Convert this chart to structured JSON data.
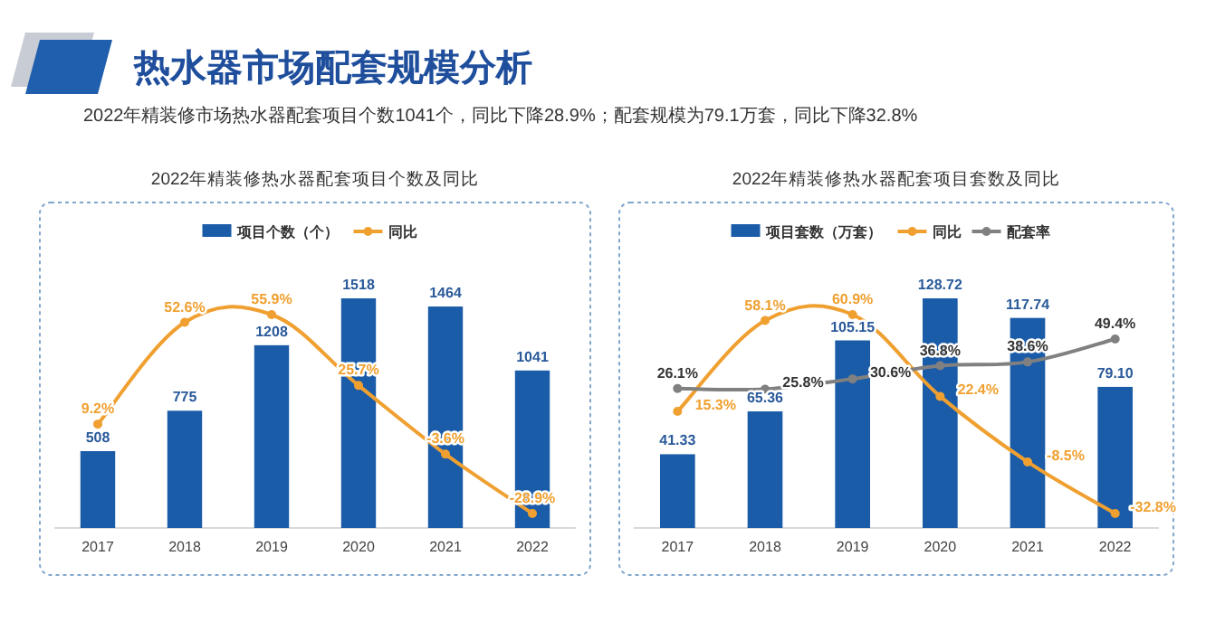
{
  "chart_data": [
    {
      "type": "other",
      "title": "热水器市场配套规模分析",
      "subtitle": "2022年精装修市场热水器配套项目个数1041个，同比下降28.9%；配套规模为79.1万套，同比下降32.8%"
    },
    {
      "type": "bar",
      "title": "2022年精装修热水器配套项目个数及同比",
      "categories": [
        "2017",
        "2018",
        "2019",
        "2020",
        "2021",
        "2022"
      ],
      "legend": "top",
      "series": [
        {
          "name": "项目个数（个）",
          "type": "bar",
          "color": "#1a5ca8",
          "values": [
            508,
            775,
            1208,
            1518,
            1464,
            1041
          ],
          "value_labels": [
            "508",
            "775",
            "1208",
            "1518",
            "1464",
            "1041"
          ]
        },
        {
          "name": "同比",
          "type": "line",
          "axis": "y2",
          "marker": "circle",
          "color": "#f0a030",
          "values": [
            9.2,
            52.6,
            55.9,
            25.7,
            -3.6,
            -28.9
          ],
          "value_labels": [
            "9.2%",
            "52.6%",
            "55.9%",
            "25.7%",
            "-3.6%",
            "-28.9%"
          ]
        }
      ]
    },
    {
      "type": "bar",
      "title": "2022年精装修热水器配套项目套数及同比",
      "categories": [
        "2017",
        "2018",
        "2019",
        "2020",
        "2021",
        "2022"
      ],
      "legend": "top",
      "series": [
        {
          "name": "项目套数（万套）",
          "type": "bar",
          "color": "#1a5ca8",
          "values": [
            41.33,
            65.36,
            105.15,
            128.72,
            117.74,
            79.1
          ],
          "value_labels": [
            "41.33",
            "65.36",
            "105.15",
            "128.72",
            "117.74",
            "79.10"
          ]
        },
        {
          "name": "同比",
          "type": "line",
          "axis": "y2",
          "marker": "circle",
          "color": "#f0a030",
          "values": [
            15.3,
            58.1,
            60.9,
            22.4,
            -8.5,
            -32.8
          ],
          "value_labels": [
            "15.3%",
            "58.1%",
            "60.9%",
            "22.4%",
            "-8.5%",
            "-32.8%"
          ]
        },
        {
          "name": "配套率",
          "type": "line",
          "axis": "y2",
          "marker": "circle",
          "color": "#808080",
          "values": [
            26.1,
            25.8,
            30.6,
            36.8,
            38.6,
            49.4
          ],
          "value_labels": [
            "26.1%",
            "25.8%",
            "30.6%",
            "36.8%",
            "38.6%",
            "49.4%"
          ]
        }
      ]
    }
  ]
}
